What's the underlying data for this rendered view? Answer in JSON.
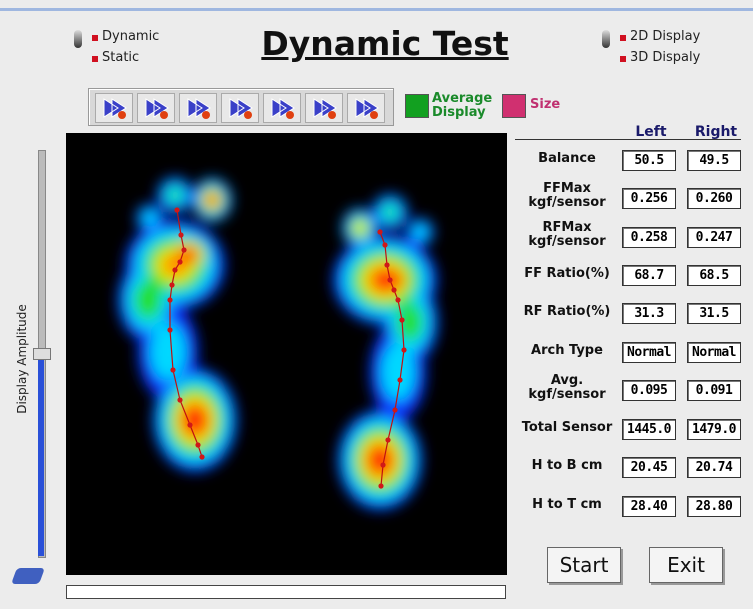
{
  "mode_options": [
    "Dynamic",
    "Static"
  ],
  "title": "Dynamic Test",
  "display_options": [
    "2D Display",
    "3D Dispaly"
  ],
  "average_display": "Average Display",
  "size": "Size",
  "slider_label": "Display Amplitude",
  "table": {
    "columns": [
      "Left",
      "Right"
    ],
    "rows": [
      {
        "label": "Balance",
        "left": "50.5",
        "right": "49.5"
      },
      {
        "label": "FFMax\nkgf/sensor",
        "left": "0.256",
        "right": "0.260"
      },
      {
        "label": "RFMax\nkgf/sensor",
        "left": "0.258",
        "right": "0.247"
      },
      {
        "label": "FF Ratio(%)",
        "left": "68.7",
        "right": "68.5"
      },
      {
        "label": "RF Ratio(%)",
        "left": "31.3",
        "right": "31.5"
      },
      {
        "label": "Arch Type",
        "left": "Normal",
        "right": "Normal"
      },
      {
        "label": "Avg.\nkgf/sensor",
        "left": "0.095",
        "right": "0.091"
      },
      {
        "label": "Total Sensor",
        "left": "1445.0",
        "right": "1479.0"
      },
      {
        "label": "H to B cm",
        "left": "20.45",
        "right": "20.74"
      },
      {
        "label": "H to T cm",
        "left": "28.40",
        "right": "28.80"
      }
    ]
  },
  "buttons": [
    "Start",
    "Exit"
  ]
}
